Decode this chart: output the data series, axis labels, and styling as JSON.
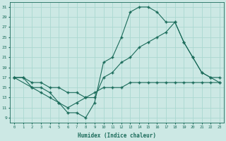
{
  "title": "",
  "xlabel": "Humidex (Indice chaleur)",
  "bg_color": "#cce8e4",
  "line_color": "#1a6b5a",
  "grid_color": "#aad8d0",
  "xlim": [
    -0.5,
    23.5
  ],
  "ylim": [
    8,
    32
  ],
  "xticks": [
    0,
    1,
    2,
    3,
    4,
    5,
    6,
    7,
    8,
    9,
    10,
    11,
    12,
    13,
    14,
    15,
    16,
    17,
    18,
    19,
    20,
    21,
    22,
    23
  ],
  "yticks": [
    9,
    11,
    13,
    15,
    17,
    19,
    21,
    23,
    25,
    27,
    29,
    31
  ],
  "line1_x": [
    0,
    1,
    2,
    3,
    4,
    5,
    6,
    7,
    8,
    9,
    10,
    11,
    12,
    13,
    14,
    15,
    16,
    17,
    18,
    19,
    20,
    21,
    22,
    23
  ],
  "line1_y": [
    17,
    17,
    15,
    15,
    14,
    12,
    10,
    10,
    9,
    12,
    20,
    21,
    25,
    30,
    31,
    31,
    30,
    28,
    28,
    24,
    21,
    18,
    17,
    17
  ],
  "line2_x": [
    0,
    2,
    3,
    4,
    5,
    6,
    7,
    8,
    9,
    10,
    11,
    12,
    13,
    14,
    15,
    16,
    17,
    18,
    19,
    20,
    21,
    22,
    23
  ],
  "line2_y": [
    17,
    15,
    14,
    13,
    12,
    11,
    12,
    13,
    13,
    17,
    18,
    20,
    21,
    23,
    24,
    25,
    26,
    28,
    24,
    21,
    18,
    17,
    16
  ],
  "line3_x": [
    0,
    1,
    2,
    3,
    4,
    5,
    6,
    7,
    8,
    9,
    10,
    11,
    12,
    13,
    14,
    15,
    16,
    17,
    18,
    19,
    20,
    21,
    22,
    23
  ],
  "line3_y": [
    17,
    17,
    16,
    16,
    15,
    15,
    14,
    14,
    13,
    14,
    15,
    15,
    15,
    16,
    16,
    16,
    16,
    16,
    16,
    16,
    16,
    16,
    16,
    16
  ]
}
